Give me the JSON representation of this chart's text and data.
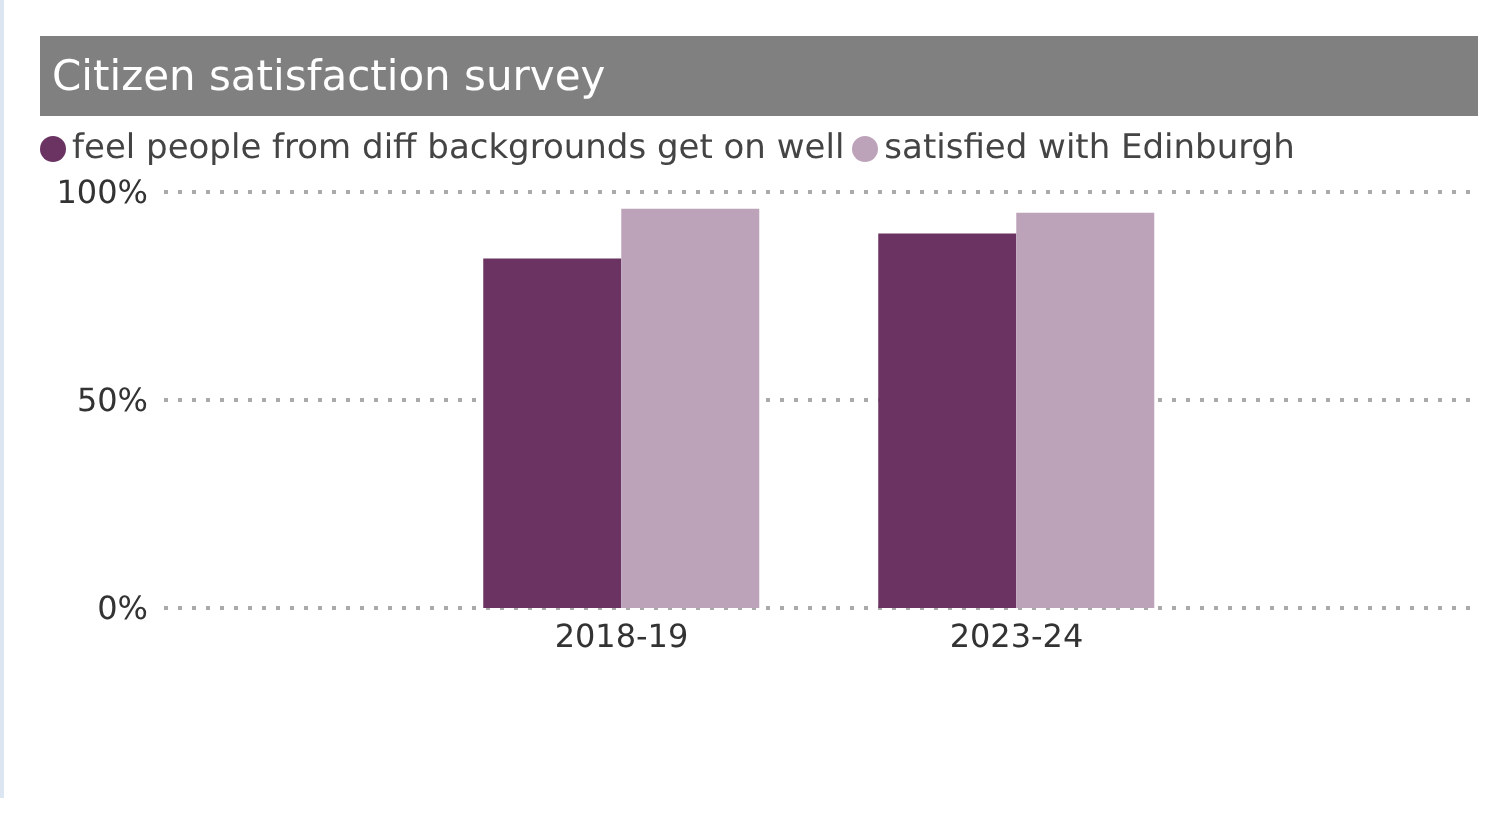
{
  "chart_data": {
    "type": "bar",
    "title": "Citizen satisfaction survey",
    "categories": [
      "2018-19",
      "2023-24"
    ],
    "series": [
      {
        "name": "feel people from diff backgrounds get on well",
        "color": "#6b3362",
        "values": [
          84,
          90
        ]
      },
      {
        "name": "satisfied with Edinburgh",
        "color": "#bda3b9",
        "values": [
          96,
          95
        ]
      }
    ],
    "ylim": [
      0,
      100
    ],
    "yticks": [
      {
        "value": 0,
        "label": "0%"
      },
      {
        "value": 50,
        "label": "50%"
      },
      {
        "value": 100,
        "label": "100%"
      }
    ],
    "grid": "y",
    "legend": "top left"
  }
}
